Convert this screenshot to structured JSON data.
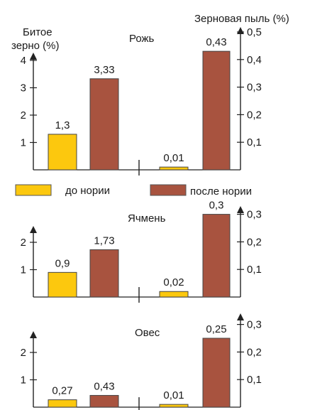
{
  "colors": {
    "before": "#fcc80e",
    "after": "#a8533f",
    "axis": "#222222"
  },
  "legend": {
    "before": "до нории",
    "after": "после нории"
  },
  "left_axis_title_line1": "Битое",
  "left_axis_title_line2": "зерно (%)",
  "right_axis_title": "Зерновая пыль (%)",
  "chart_data": [
    {
      "type": "bar",
      "title": "Рожь",
      "left_axis": {
        "ticks": [
          "1",
          "2",
          "3",
          "4"
        ],
        "ylim": [
          0,
          4
        ]
      },
      "right_axis": {
        "ticks": [
          "0,1",
          "0,2",
          "0,3",
          "0,4",
          "0,5"
        ],
        "ylim": [
          0,
          0.5
        ]
      },
      "broken_grain": {
        "before": 1.3,
        "after": 3.33,
        "labels": [
          "1,3",
          "3,33"
        ]
      },
      "grain_dust": {
        "before": 0.01,
        "after": 0.43,
        "labels": [
          "0,01",
          "0,43"
        ]
      }
    },
    {
      "type": "bar",
      "title": "Ячмень",
      "left_axis": {
        "ticks": [
          "1",
          "2"
        ],
        "ylim": [
          0,
          2.7
        ]
      },
      "right_axis": {
        "ticks": [
          "0,1",
          "0,2",
          "0,3"
        ],
        "ylim": [
          0,
          0.34
        ]
      },
      "broken_grain": {
        "before": 0.9,
        "after": 1.73,
        "labels": [
          "0,9",
          "1,73"
        ]
      },
      "grain_dust": {
        "before": 0.02,
        "after": 0.3,
        "labels": [
          "0,02",
          "0,3"
        ]
      }
    },
    {
      "type": "bar",
      "title": "Овес",
      "left_axis": {
        "ticks": [
          "1",
          "2"
        ],
        "ylim": [
          0,
          2.7
        ]
      },
      "right_axis": {
        "ticks": [
          "0,1",
          "0,2",
          "0,3"
        ],
        "ylim": [
          0,
          0.34
        ]
      },
      "broken_grain": {
        "before": 0.27,
        "after": 0.43,
        "labels": [
          "0,27",
          "0,43"
        ]
      },
      "grain_dust": {
        "before": 0.01,
        "after": 0.25,
        "labels": [
          "0,01",
          "0,25"
        ]
      }
    }
  ]
}
